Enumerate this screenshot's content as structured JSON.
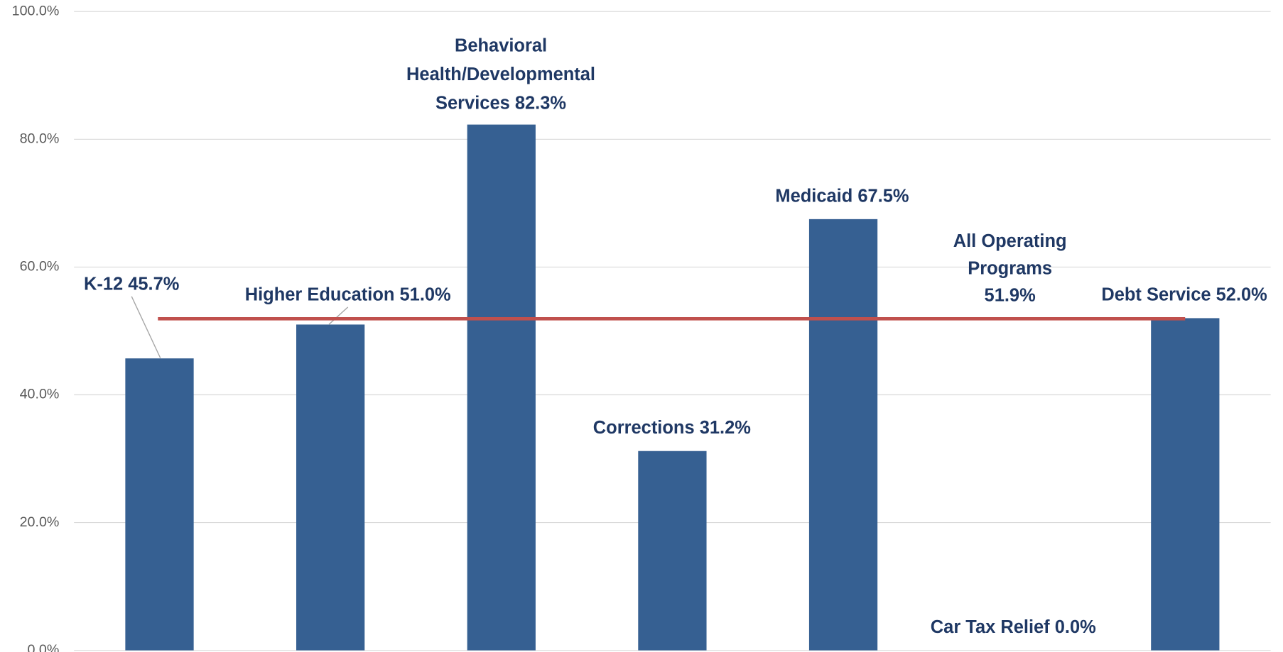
{
  "chart_data": {
    "type": "bar",
    "values": [
      45.7,
      51.0,
      82.3,
      31.2,
      67.5,
      0.0,
      52.0
    ],
    "value_labels": [
      [
        "K-12 45.7%"
      ],
      [
        "Higher Education 51.0%"
      ],
      [
        "Behavioral",
        "Health/Developmental",
        "Services 82.3%"
      ],
      [
        "Corrections 31.2%"
      ],
      [
        "Medicaid 67.5%"
      ],
      [
        "Car Tax Relief  0.0%"
      ],
      [
        "Debt Service 52.0%"
      ]
    ],
    "color": "#366092",
    "reference_line": {
      "value": 51.9,
      "label": [
        "All Operating",
        "Programs",
        "51.9%"
      ],
      "color": "#c0504d"
    },
    "ylim": [
      0,
      100
    ],
    "yticks": [
      {
        "value": 0,
        "label": "0.0%"
      },
      {
        "value": 20,
        "label": "20.0%"
      },
      {
        "value": 40,
        "label": "40.0%"
      },
      {
        "value": 60,
        "label": "60.0%"
      },
      {
        "value": 80,
        "label": "80.0%"
      },
      {
        "value": 100,
        "label": "100.0%"
      }
    ],
    "grid": true
  }
}
